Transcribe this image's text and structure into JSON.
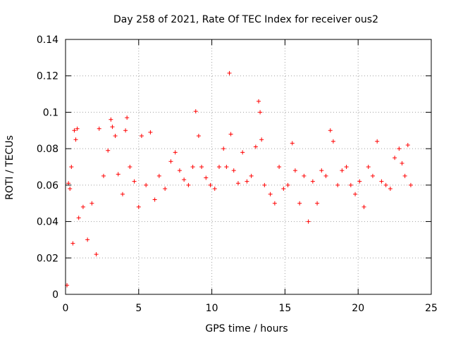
{
  "chart_data": {
    "type": "scatter",
    "title": "Day 258 of 2021, Rate Of TEC Index for receiver ous2",
    "xlabel": "GPS time / hours",
    "ylabel": "ROTI / TECUs",
    "xlim": [
      0,
      25
    ],
    "ylim": [
      0,
      0.14
    ],
    "x_ticks": [
      "0",
      "5",
      "10",
      "15",
      "20",
      "25"
    ],
    "y_ticks": [
      "0",
      "0.02",
      "0.04",
      "0.06",
      "0.08",
      "0.1",
      "0.12",
      "0.14"
    ],
    "grid": true,
    "marker": "+",
    "color": "#ff0000",
    "series": [
      {
        "points": [
          [
            0.1,
            0.005
          ],
          [
            0.2,
            0.061
          ],
          [
            0.3,
            0.058
          ],
          [
            0.4,
            0.07
          ],
          [
            0.5,
            0.028
          ],
          [
            0.6,
            0.09
          ],
          [
            0.7,
            0.085
          ],
          [
            0.8,
            0.091
          ],
          [
            0.9,
            0.042
          ],
          [
            1.2,
            0.048
          ],
          [
            1.5,
            0.03
          ],
          [
            1.8,
            0.05
          ],
          [
            2.1,
            0.022
          ],
          [
            2.3,
            0.091
          ],
          [
            2.6,
            0.065
          ],
          [
            2.9,
            0.079
          ],
          [
            3.1,
            0.096
          ],
          [
            3.2,
            0.092
          ],
          [
            3.4,
            0.087
          ],
          [
            3.6,
            0.066
          ],
          [
            3.9,
            0.055
          ],
          [
            4.1,
            0.09
          ],
          [
            4.2,
            0.097
          ],
          [
            4.4,
            0.07
          ],
          [
            4.7,
            0.062
          ],
          [
            5.0,
            0.048
          ],
          [
            5.2,
            0.087
          ],
          [
            5.5,
            0.06
          ],
          [
            5.8,
            0.089
          ],
          [
            6.1,
            0.052
          ],
          [
            6.4,
            0.065
          ],
          [
            6.8,
            0.058
          ],
          [
            7.2,
            0.073
          ],
          [
            7.5,
            0.078
          ],
          [
            7.8,
            0.068
          ],
          [
            8.1,
            0.063
          ],
          [
            8.4,
            0.06
          ],
          [
            8.7,
            0.07
          ],
          [
            8.9,
            0.1005
          ],
          [
            9.1,
            0.087
          ],
          [
            9.3,
            0.07
          ],
          [
            9.6,
            0.064
          ],
          [
            9.9,
            0.06
          ],
          [
            10.2,
            0.058
          ],
          [
            10.5,
            0.07
          ],
          [
            10.8,
            0.08
          ],
          [
            11.0,
            0.07
          ],
          [
            11.2,
            0.1215
          ],
          [
            11.3,
            0.088
          ],
          [
            11.5,
            0.068
          ],
          [
            11.8,
            0.061
          ],
          [
            12.1,
            0.078
          ],
          [
            12.4,
            0.062
          ],
          [
            12.7,
            0.065
          ],
          [
            13.0,
            0.081
          ],
          [
            13.2,
            0.106
          ],
          [
            13.3,
            0.1
          ],
          [
            13.4,
            0.085
          ],
          [
            13.6,
            0.06
          ],
          [
            14.0,
            0.055
          ],
          [
            14.3,
            0.05
          ],
          [
            14.6,
            0.07
          ],
          [
            14.9,
            0.058
          ],
          [
            15.2,
            0.06
          ],
          [
            15.5,
            0.083
          ],
          [
            15.7,
            0.068
          ],
          [
            16.0,
            0.05
          ],
          [
            16.3,
            0.065
          ],
          [
            16.6,
            0.04
          ],
          [
            16.9,
            0.062
          ],
          [
            17.2,
            0.05
          ],
          [
            17.5,
            0.068
          ],
          [
            17.8,
            0.065
          ],
          [
            18.1,
            0.09
          ],
          [
            18.3,
            0.084
          ],
          [
            18.6,
            0.06
          ],
          [
            18.9,
            0.068
          ],
          [
            19.2,
            0.07
          ],
          [
            19.5,
            0.06
          ],
          [
            19.8,
            0.055
          ],
          [
            20.1,
            0.062
          ],
          [
            20.4,
            0.048
          ],
          [
            20.7,
            0.07
          ],
          [
            21.0,
            0.065
          ],
          [
            21.3,
            0.084
          ],
          [
            21.6,
            0.062
          ],
          [
            21.9,
            0.06
          ],
          [
            22.2,
            0.058
          ],
          [
            22.5,
            0.075
          ],
          [
            22.8,
            0.08
          ],
          [
            23.0,
            0.072
          ],
          [
            23.2,
            0.065
          ],
          [
            23.4,
            0.082
          ],
          [
            23.6,
            0.06
          ]
        ]
      }
    ]
  }
}
